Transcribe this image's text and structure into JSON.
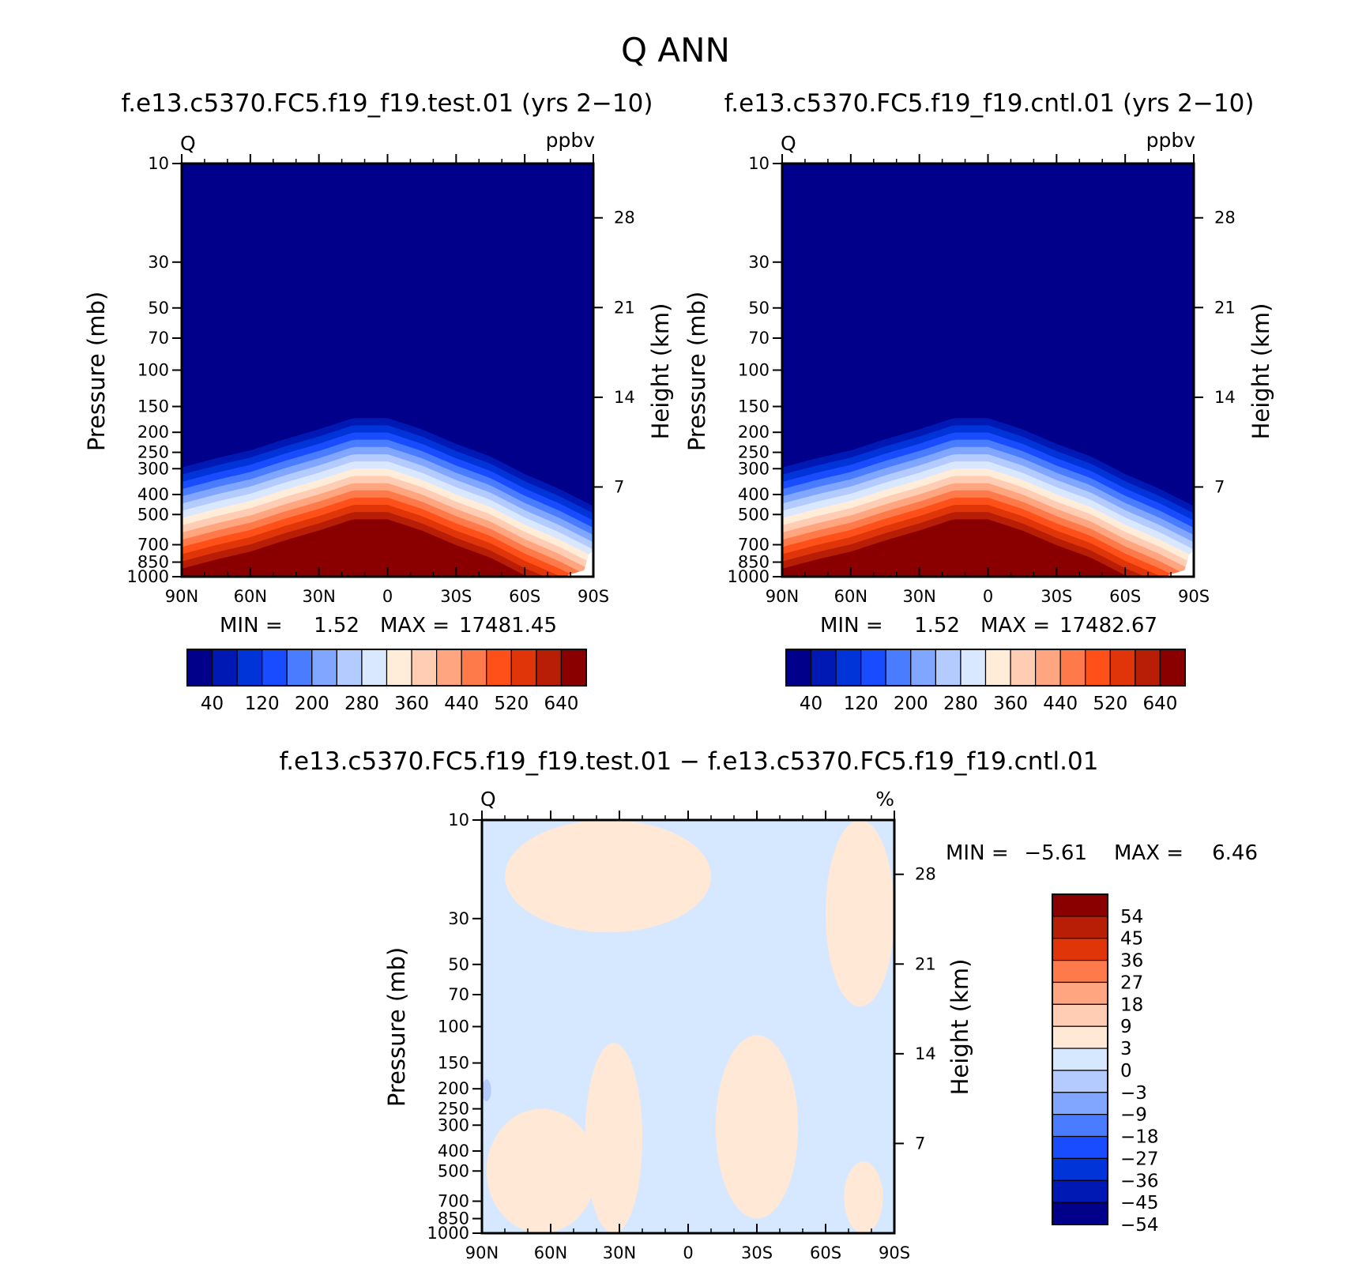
{
  "figure": {
    "title": "Q ANN"
  },
  "panels": [
    {
      "title": "f.e13.c5370.FC5.f19_f19.test.01 (yrs 2−10)",
      "left_string": "Q",
      "right_string": "ppbv",
      "ylabel_left": "Pressure (mb)",
      "ylabel_right": "Height (km)",
      "min_label": "MIN =",
      "min_value": "1.52",
      "max_label": "MAX =",
      "max_value": "17481.45"
    },
    {
      "title": "f.e13.c5370.FC5.f19_f19.cntl.01 (yrs 2−10)",
      "left_string": "Q",
      "right_string": "ppbv",
      "ylabel_left": "Pressure (mb)",
      "ylabel_right": "Height (km)",
      "min_label": "MIN =",
      "min_value": "1.52",
      "max_label": "MAX =",
      "max_value": "17482.67"
    },
    {
      "title": "f.e13.c5370.FC5.f19_f19.test.01 − f.e13.c5370.FC5.f19_f19.cntl.01",
      "left_string": "Q",
      "right_string": "%",
      "ylabel_left": "Pressure (mb)",
      "ylabel_right": "Height (km)",
      "min_label": "MIN =",
      "min_value": "−5.61",
      "max_label": "MAX =",
      "max_value": "6.46"
    }
  ],
  "colorbars": {
    "abs_labels": [
      "40",
      "120",
      "200",
      "280",
      "360",
      "440",
      "520",
      "640"
    ],
    "diff_labels": [
      "54",
      "45",
      "36",
      "27",
      "18",
      "9",
      "3",
      "0",
      "−3",
      "−9",
      "−18",
      "−27",
      "−36",
      "−45",
      "−54"
    ],
    "abs_colors": [
      "#00008a",
      "#0019b5",
      "#0034d9",
      "#1a4cff",
      "#4a7cff",
      "#80a6ff",
      "#b3cbff",
      "#d9e8ff",
      "#ffedd9",
      "#ffcdb3",
      "#ffa680",
      "#ff7a4a",
      "#ff501a",
      "#e03509",
      "#b81e05",
      "#8a0000"
    ],
    "diff_colors": [
      "#8a0000",
      "#b81e05",
      "#e03509",
      "#ff7a4a",
      "#ffa680",
      "#ffcdb3",
      "#ffe8d6",
      "#d6e8ff",
      "#b3cbff",
      "#80a6ff",
      "#4a7cff",
      "#1a4cff",
      "#0034d9",
      "#0019b5",
      "#00008a"
    ]
  },
  "chart_data": [
    {
      "type": "heatmap",
      "name": "test",
      "x": [
        "90N",
        "60N",
        "30N",
        "0",
        "30S",
        "60S",
        "90S"
      ],
      "x_values": [
        90,
        60,
        30,
        0,
        -30,
        -60,
        -90
      ],
      "xlim": [
        90,
        -90
      ],
      "y_pressure_ticks": [
        10,
        30,
        50,
        70,
        100,
        150,
        200,
        250,
        300,
        400,
        500,
        700,
        850,
        1000
      ],
      "y_height_ticks": [
        7,
        14,
        21,
        28
      ],
      "ylim": [
        10,
        1000
      ],
      "y_scale": "log",
      "units": "ppbv",
      "contour_levels": [
        40,
        80,
        120,
        160,
        200,
        240,
        280,
        320,
        360,
        400,
        440,
        480,
        520,
        560,
        640
      ],
      "min": 1.52,
      "max": 17481.45,
      "transition_pressure_by_lat": [
        [
          90,
          520
        ],
        [
          75,
          470
        ],
        [
          60,
          430
        ],
        [
          45,
          380
        ],
        [
          30,
          340
        ],
        [
          15,
          300
        ],
        [
          0,
          300
        ],
        [
          -15,
          340
        ],
        [
          -30,
          400
        ],
        [
          -45,
          460
        ],
        [
          -60,
          560
        ],
        [
          -75,
          660
        ],
        [
          -90,
          800
        ]
      ]
    },
    {
      "type": "heatmap",
      "name": "cntl",
      "x": [
        "90N",
        "60N",
        "30N",
        "0",
        "30S",
        "60S",
        "90S"
      ],
      "x_values": [
        90,
        60,
        30,
        0,
        -30,
        -60,
        -90
      ],
      "xlim": [
        90,
        -90
      ],
      "y_pressure_ticks": [
        10,
        30,
        50,
        70,
        100,
        150,
        200,
        250,
        300,
        400,
        500,
        700,
        850,
        1000
      ],
      "y_height_ticks": [
        7,
        14,
        21,
        28
      ],
      "ylim": [
        10,
        1000
      ],
      "y_scale": "log",
      "units": "ppbv",
      "contour_levels": [
        40,
        80,
        120,
        160,
        200,
        240,
        280,
        320,
        360,
        400,
        440,
        480,
        520,
        560,
        640
      ],
      "min": 1.52,
      "max": 17482.67,
      "transition_pressure_by_lat": [
        [
          90,
          520
        ],
        [
          75,
          470
        ],
        [
          60,
          430
        ],
        [
          45,
          380
        ],
        [
          30,
          340
        ],
        [
          15,
          300
        ],
        [
          0,
          300
        ],
        [
          -15,
          340
        ],
        [
          -30,
          400
        ],
        [
          -45,
          460
        ],
        [
          -60,
          560
        ],
        [
          -75,
          660
        ],
        [
          -90,
          800
        ]
      ]
    },
    {
      "type": "heatmap",
      "name": "difference",
      "x": [
        "90N",
        "60N",
        "30N",
        "0",
        "30S",
        "60S",
        "90S"
      ],
      "x_values": [
        90,
        60,
        30,
        0,
        -30,
        -60,
        -90
      ],
      "xlim": [
        90,
        -90
      ],
      "y_pressure_ticks": [
        10,
        30,
        50,
        70,
        100,
        150,
        200,
        250,
        300,
        400,
        500,
        700,
        850,
        1000
      ],
      "y_height_ticks": [
        7,
        14,
        21,
        28
      ],
      "ylim": [
        10,
        1000
      ],
      "y_scale": "log",
      "units": "%",
      "contour_levels": [
        -54,
        -45,
        -36,
        -27,
        -18,
        -9,
        -3,
        0,
        3,
        9,
        18,
        27,
        36,
        45,
        54
      ],
      "min": -5.61,
      "max": 6.46,
      "positive_regions": [
        {
          "lat": [
            80,
            -10
          ],
          "p": [
            10,
            35
          ]
        },
        {
          "lat": [
            -60,
            -90
          ],
          "p": [
            10,
            80
          ]
        },
        {
          "lat": [
            88,
            40
          ],
          "p": [
            250,
            1000
          ]
        },
        {
          "lat": [
            45,
            20
          ],
          "p": [
            120,
            1000
          ]
        },
        {
          "lat": [
            -12,
            -48
          ],
          "p": [
            110,
            850
          ]
        },
        {
          "lat": [
            -68,
            -85
          ],
          "p": [
            450,
            1000
          ]
        }
      ],
      "negative_regions": [
        {
          "lat": [
            90,
            86
          ],
          "p": [
            180,
            230
          ]
        }
      ]
    }
  ]
}
